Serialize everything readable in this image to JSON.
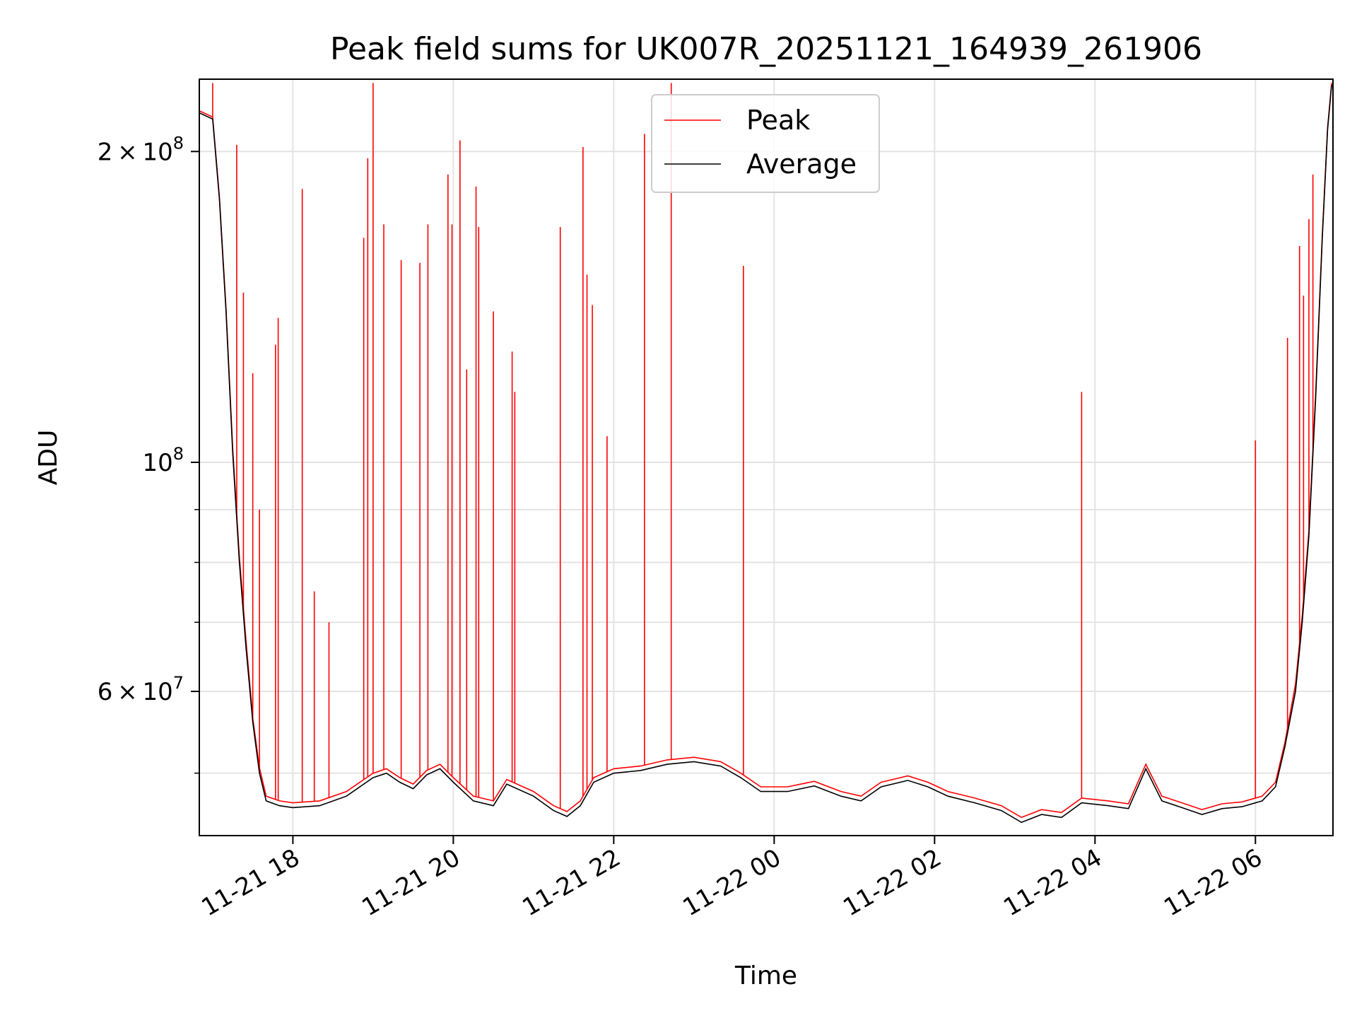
{
  "chart_data": {
    "type": "line",
    "title": "Peak field sums for UK007R_20251121_164939_261906",
    "xlabel": "Time",
    "ylabel": "ADU",
    "y_scale": "log",
    "xlim": [
      "2025-11-21 16:50",
      "2025-11-22 06:58"
    ],
    "ylim": [
      43500000,
      235000000
    ],
    "grid": true,
    "legend": {
      "placement": "upper-center",
      "entries": [
        "Peak",
        "Average"
      ]
    },
    "colors": {
      "Peak": "#ff0000",
      "Average": "#000000"
    },
    "x_ticks": [
      "11-21 18",
      "11-21 20",
      "11-21 22",
      "11-22 00",
      "11-22 02",
      "11-22 04",
      "11-22 06"
    ],
    "x_tick_times": [
      "2025-11-21 18:00",
      "2025-11-21 20:00",
      "2025-11-21 22:00",
      "2025-11-22 00:00",
      "2025-11-22 02:00",
      "2025-11-22 04:00",
      "2025-11-22 06:00"
    ],
    "y_ticks": [
      {
        "value": 200000000,
        "base": "2",
        "exp": "8"
      },
      {
        "value": 100000000,
        "base": "",
        "exp": "8"
      },
      {
        "value": 60000000,
        "base": "6",
        "exp": "7"
      }
    ],
    "y_minor_ticks": [
      70000000,
      80000000,
      90000000,
      50000000
    ],
    "series": [
      {
        "name": "Average",
        "points": [
          [
            "2025-11-21 16:50",
            218000000
          ],
          [
            "2025-11-21 17:00",
            215000000
          ],
          [
            "2025-11-21 17:05",
            180000000
          ],
          [
            "2025-11-21 17:10",
            140000000
          ],
          [
            "2025-11-21 17:15",
            102000000
          ],
          [
            "2025-11-21 17:20",
            80000000
          ],
          [
            "2025-11-21 17:25",
            66000000
          ],
          [
            "2025-11-21 17:30",
            56000000
          ],
          [
            "2025-11-21 17:35",
            50000000
          ],
          [
            "2025-11-21 17:40",
            47000000
          ],
          [
            "2025-11-21 17:50",
            46500000
          ],
          [
            "2025-11-21 18:00",
            46300000
          ],
          [
            "2025-11-21 18:20",
            46500000
          ],
          [
            "2025-11-21 18:40",
            47500000
          ],
          [
            "2025-11-21 19:00",
            49500000
          ],
          [
            "2025-11-21 19:10",
            50000000
          ],
          [
            "2025-11-21 19:20",
            49000000
          ],
          [
            "2025-11-21 19:30",
            48300000
          ],
          [
            "2025-11-21 19:40",
            49800000
          ],
          [
            "2025-11-21 19:50",
            50500000
          ],
          [
            "2025-11-21 20:00",
            49000000
          ],
          [
            "2025-11-21 20:15",
            47000000
          ],
          [
            "2025-11-21 20:30",
            46500000
          ],
          [
            "2025-11-21 20:40",
            48800000
          ],
          [
            "2025-11-21 21:00",
            47500000
          ],
          [
            "2025-11-21 21:15",
            46000000
          ],
          [
            "2025-11-21 21:25",
            45400000
          ],
          [
            "2025-11-21 21:35",
            46500000
          ],
          [
            "2025-11-21 21:45",
            49000000
          ],
          [
            "2025-11-21 22:00",
            50000000
          ],
          [
            "2025-11-21 22:20",
            50300000
          ],
          [
            "2025-11-21 22:40",
            51000000
          ],
          [
            "2025-11-21 23:00",
            51300000
          ],
          [
            "2025-11-21 23:20",
            50800000
          ],
          [
            "2025-11-21 23:35",
            49500000
          ],
          [
            "2025-11-21 23:50",
            48000000
          ],
          [
            "2025-11-22 00:10",
            48000000
          ],
          [
            "2025-11-22 00:30",
            48600000
          ],
          [
            "2025-11-22 00:50",
            47500000
          ],
          [
            "2025-11-22 01:05",
            47000000
          ],
          [
            "2025-11-22 01:20",
            48500000
          ],
          [
            "2025-11-22 01:40",
            49200000
          ],
          [
            "2025-11-22 01:55",
            48500000
          ],
          [
            "2025-11-22 02:10",
            47500000
          ],
          [
            "2025-11-22 02:30",
            46800000
          ],
          [
            "2025-11-22 02:50",
            46000000
          ],
          [
            "2025-11-22 03:05",
            44800000
          ],
          [
            "2025-11-22 03:20",
            45600000
          ],
          [
            "2025-11-22 03:35",
            45300000
          ],
          [
            "2025-11-22 03:50",
            46800000
          ],
          [
            "2025-11-22 04:10",
            46500000
          ],
          [
            "2025-11-22 04:25",
            46200000
          ],
          [
            "2025-11-22 04:38",
            50500000
          ],
          [
            "2025-11-22 04:50",
            47000000
          ],
          [
            "2025-11-22 05:05",
            46300000
          ],
          [
            "2025-11-22 05:20",
            45600000
          ],
          [
            "2025-11-22 05:35",
            46200000
          ],
          [
            "2025-11-22 05:50",
            46400000
          ],
          [
            "2025-11-22 06:05",
            47000000
          ],
          [
            "2025-11-22 06:15",
            48500000
          ],
          [
            "2025-11-22 06:22",
            53000000
          ],
          [
            "2025-11-22 06:30",
            60000000
          ],
          [
            "2025-11-22 06:35",
            70000000
          ],
          [
            "2025-11-22 06:40",
            85000000
          ],
          [
            "2025-11-22 06:45",
            115000000
          ],
          [
            "2025-11-22 06:50",
            165000000
          ],
          [
            "2025-11-22 06:54",
            210000000
          ],
          [
            "2025-11-22 06:57",
            232000000
          ]
        ]
      },
      {
        "name": "Peak",
        "points": [
          [
            "2025-11-21 16:50",
            219000000
          ],
          [
            "2025-11-21 17:00",
            216000000
          ],
          [
            "2025-11-21 17:05",
            181000000
          ],
          [
            "2025-11-21 17:10",
            141000000
          ],
          [
            "2025-11-21 17:15",
            103000000
          ],
          [
            "2025-11-21 17:20",
            81000000
          ],
          [
            "2025-11-21 17:25",
            67000000
          ],
          [
            "2025-11-21 17:30",
            56500000
          ],
          [
            "2025-11-21 17:35",
            50600000
          ],
          [
            "2025-11-21 17:40",
            47500000
          ],
          [
            "2025-11-21 17:50",
            47000000
          ],
          [
            "2025-11-21 18:00",
            46800000
          ],
          [
            "2025-11-21 18:20",
            47000000
          ],
          [
            "2025-11-21 18:40",
            48000000
          ],
          [
            "2025-11-21 19:00",
            50000000
          ],
          [
            "2025-11-21 19:10",
            50500000
          ],
          [
            "2025-11-21 19:20",
            49500000
          ],
          [
            "2025-11-21 19:30",
            48800000
          ],
          [
            "2025-11-21 19:40",
            50300000
          ],
          [
            "2025-11-21 19:50",
            51000000
          ],
          [
            "2025-11-21 20:00",
            49500000
          ],
          [
            "2025-11-21 20:15",
            47500000
          ],
          [
            "2025-11-21 20:30",
            47000000
          ],
          [
            "2025-11-21 20:40",
            49300000
          ],
          [
            "2025-11-21 21:00",
            48000000
          ],
          [
            "2025-11-21 21:15",
            46500000
          ],
          [
            "2025-11-21 21:25",
            45900000
          ],
          [
            "2025-11-21 21:35",
            47000000
          ],
          [
            "2025-11-21 21:45",
            49500000
          ],
          [
            "2025-11-21 22:00",
            50500000
          ],
          [
            "2025-11-21 22:20",
            50800000
          ],
          [
            "2025-11-21 22:40",
            51500000
          ],
          [
            "2025-11-21 23:00",
            51800000
          ],
          [
            "2025-11-21 23:20",
            51300000
          ],
          [
            "2025-11-21 23:35",
            50000000
          ],
          [
            "2025-11-21 23:50",
            48500000
          ],
          [
            "2025-11-22 00:10",
            48500000
          ],
          [
            "2025-11-22 00:30",
            49100000
          ],
          [
            "2025-11-22 00:50",
            48000000
          ],
          [
            "2025-11-22 01:05",
            47500000
          ],
          [
            "2025-11-22 01:20",
            49000000
          ],
          [
            "2025-11-22 01:40",
            49700000
          ],
          [
            "2025-11-22 01:55",
            49000000
          ],
          [
            "2025-11-22 02:10",
            48000000
          ],
          [
            "2025-11-22 02:30",
            47300000
          ],
          [
            "2025-11-22 02:50",
            46500000
          ],
          [
            "2025-11-22 03:05",
            45300000
          ],
          [
            "2025-11-22 03:20",
            46100000
          ],
          [
            "2025-11-22 03:35",
            45800000
          ],
          [
            "2025-11-22 03:50",
            47300000
          ],
          [
            "2025-11-22 04:10",
            47000000
          ],
          [
            "2025-11-22 04:25",
            46700000
          ],
          [
            "2025-11-22 04:38",
            51000000
          ],
          [
            "2025-11-22 04:50",
            47500000
          ],
          [
            "2025-11-22 05:05",
            46800000
          ],
          [
            "2025-11-22 05:20",
            46100000
          ],
          [
            "2025-11-22 05:35",
            46700000
          ],
          [
            "2025-11-22 05:50",
            46900000
          ],
          [
            "2025-11-22 06:05",
            47500000
          ],
          [
            "2025-11-22 06:15",
            49000000
          ],
          [
            "2025-11-22 06:22",
            53500000
          ],
          [
            "2025-11-22 06:30",
            61000000
          ],
          [
            "2025-11-22 06:35",
            71000000
          ],
          [
            "2025-11-22 06:40",
            86000000
          ],
          [
            "2025-11-22 06:45",
            116000000
          ],
          [
            "2025-11-22 06:50",
            166000000
          ],
          [
            "2025-11-22 06:54",
            211000000
          ],
          [
            "2025-11-22 06:57",
            233000000
          ]
        ],
        "spikes": [
          [
            "2025-11-21 17:00",
            233000000
          ],
          [
            "2025-11-21 17:18",
            203000000
          ],
          [
            "2025-11-21 17:23",
            146000000
          ],
          [
            "2025-11-21 17:30",
            122000000
          ],
          [
            "2025-11-21 17:35",
            90000000
          ],
          [
            "2025-11-21 17:47",
            130000000
          ],
          [
            "2025-11-21 17:49",
            138000000
          ],
          [
            "2025-11-21 18:07",
            184000000
          ],
          [
            "2025-11-21 18:16",
            75000000
          ],
          [
            "2025-11-21 18:27",
            70000000
          ],
          [
            "2025-11-21 18:53",
            165000000
          ],
          [
            "2025-11-21 18:56",
            197000000
          ],
          [
            "2025-11-21 19:00",
            233000000
          ],
          [
            "2025-11-21 19:08",
            170000000
          ],
          [
            "2025-11-21 19:21",
            157000000
          ],
          [
            "2025-11-21 19:35",
            156000000
          ],
          [
            "2025-11-21 19:41",
            170000000
          ],
          [
            "2025-11-21 19:56",
            190000000
          ],
          [
            "2025-11-21 19:59",
            170000000
          ],
          [
            "2025-11-21 20:05",
            205000000
          ],
          [
            "2025-11-21 20:10",
            123000000
          ],
          [
            "2025-11-21 20:17",
            185000000
          ],
          [
            "2025-11-21 20:19",
            169000000
          ],
          [
            "2025-11-21 20:30",
            140000000
          ],
          [
            "2025-11-21 20:44",
            128000000
          ],
          [
            "2025-11-21 20:46",
            117000000
          ],
          [
            "2025-11-21 21:20",
            169000000
          ],
          [
            "2025-11-21 21:37",
            202000000
          ],
          [
            "2025-11-21 21:40",
            152000000
          ],
          [
            "2025-11-21 21:44",
            142000000
          ],
          [
            "2025-11-21 21:55",
            106000000
          ],
          [
            "2025-11-21 22:23",
            208000000
          ],
          [
            "2025-11-21 22:43",
            233000000
          ],
          [
            "2025-11-21 23:37",
            155000000
          ],
          [
            "2025-11-22 03:50",
            117000000
          ],
          [
            "2025-11-22 06:00",
            105000000
          ],
          [
            "2025-11-22 06:24",
            132000000
          ],
          [
            "2025-11-22 06:33",
            162000000
          ],
          [
            "2025-11-22 06:36",
            145000000
          ],
          [
            "2025-11-22 06:40",
            172000000
          ],
          [
            "2025-11-22 06:43",
            190000000
          ]
        ]
      }
    ]
  }
}
